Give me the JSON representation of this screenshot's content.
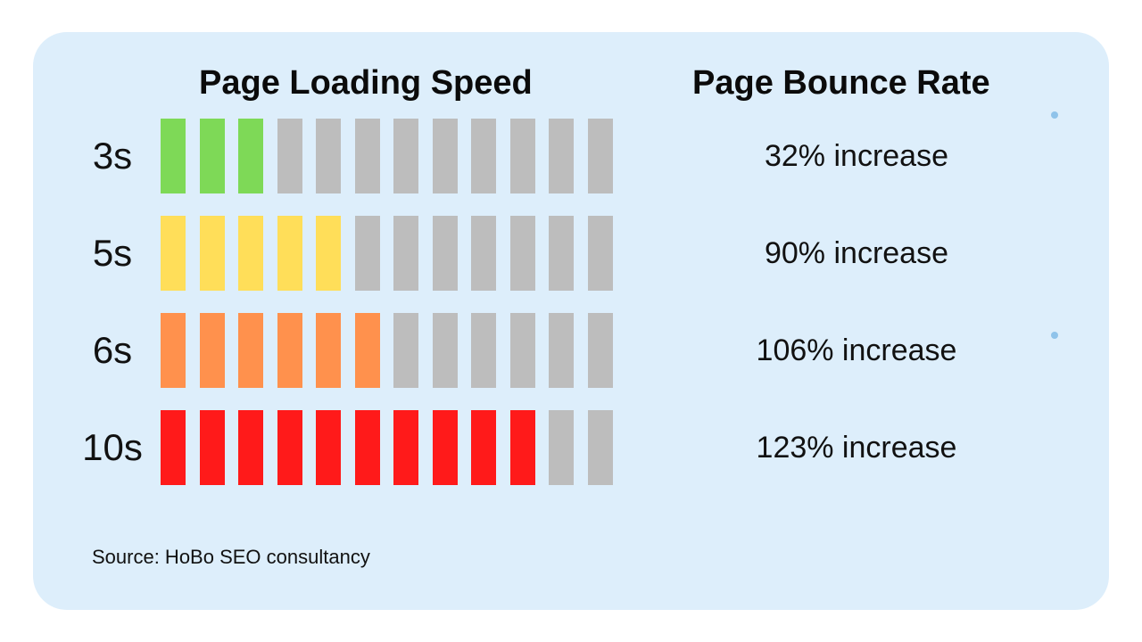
{
  "chart_data": {
    "type": "bar",
    "title_left": "Page Loading Speed",
    "title_right": "Page Bounce Rate",
    "total_segments": 12,
    "rows": [
      {
        "label": "3s",
        "filled": 3,
        "color": "#7ed957",
        "bounce": "32% increase"
      },
      {
        "label": "5s",
        "filled": 5,
        "color": "#ffde59",
        "bounce": "90% increase"
      },
      {
        "label": "6s",
        "filled": 6,
        "color": "#ff914d",
        "bounce": "106% increase"
      },
      {
        "label": "10s",
        "filled": 10,
        "color": "#ff1a1a",
        "bounce": "123% increase"
      }
    ],
    "empty_color": "#bdbdbd"
  },
  "source": "Source: HoBo SEO consultancy",
  "colors": {
    "card_background": "#ddeefb",
    "dot": "#8fc3ea"
  }
}
